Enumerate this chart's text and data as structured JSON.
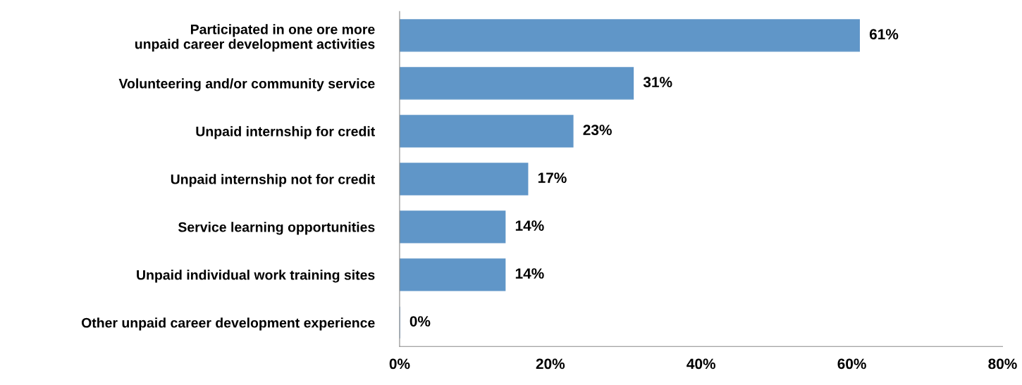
{
  "chart_data": {
    "type": "bar",
    "orientation": "horizontal",
    "categories": [
      "Participated in one ore more\nunpaid career development activities",
      "Volunteering and/or community service",
      "Unpaid internship for credit",
      "Unpaid internship not for credit",
      "Service learning opportunities",
      "Unpaid individual work training sites",
      "Other unpaid career development experience"
    ],
    "values": [
      61,
      31,
      23,
      17,
      14,
      14,
      0
    ],
    "value_labels": [
      "61%",
      "31%",
      "23%",
      "17%",
      "14%",
      "14%",
      "0%"
    ],
    "color": "#6096c8",
    "xlim": [
      0,
      80
    ],
    "xticks": [
      {
        "value": 0,
        "label": "0%"
      },
      {
        "value": 20,
        "label": "20%"
      },
      {
        "value": 40,
        "label": "40%"
      },
      {
        "value": 60,
        "label": "60%"
      },
      {
        "value": 80,
        "label": "80%"
      }
    ],
    "grid": false,
    "legend": false
  }
}
